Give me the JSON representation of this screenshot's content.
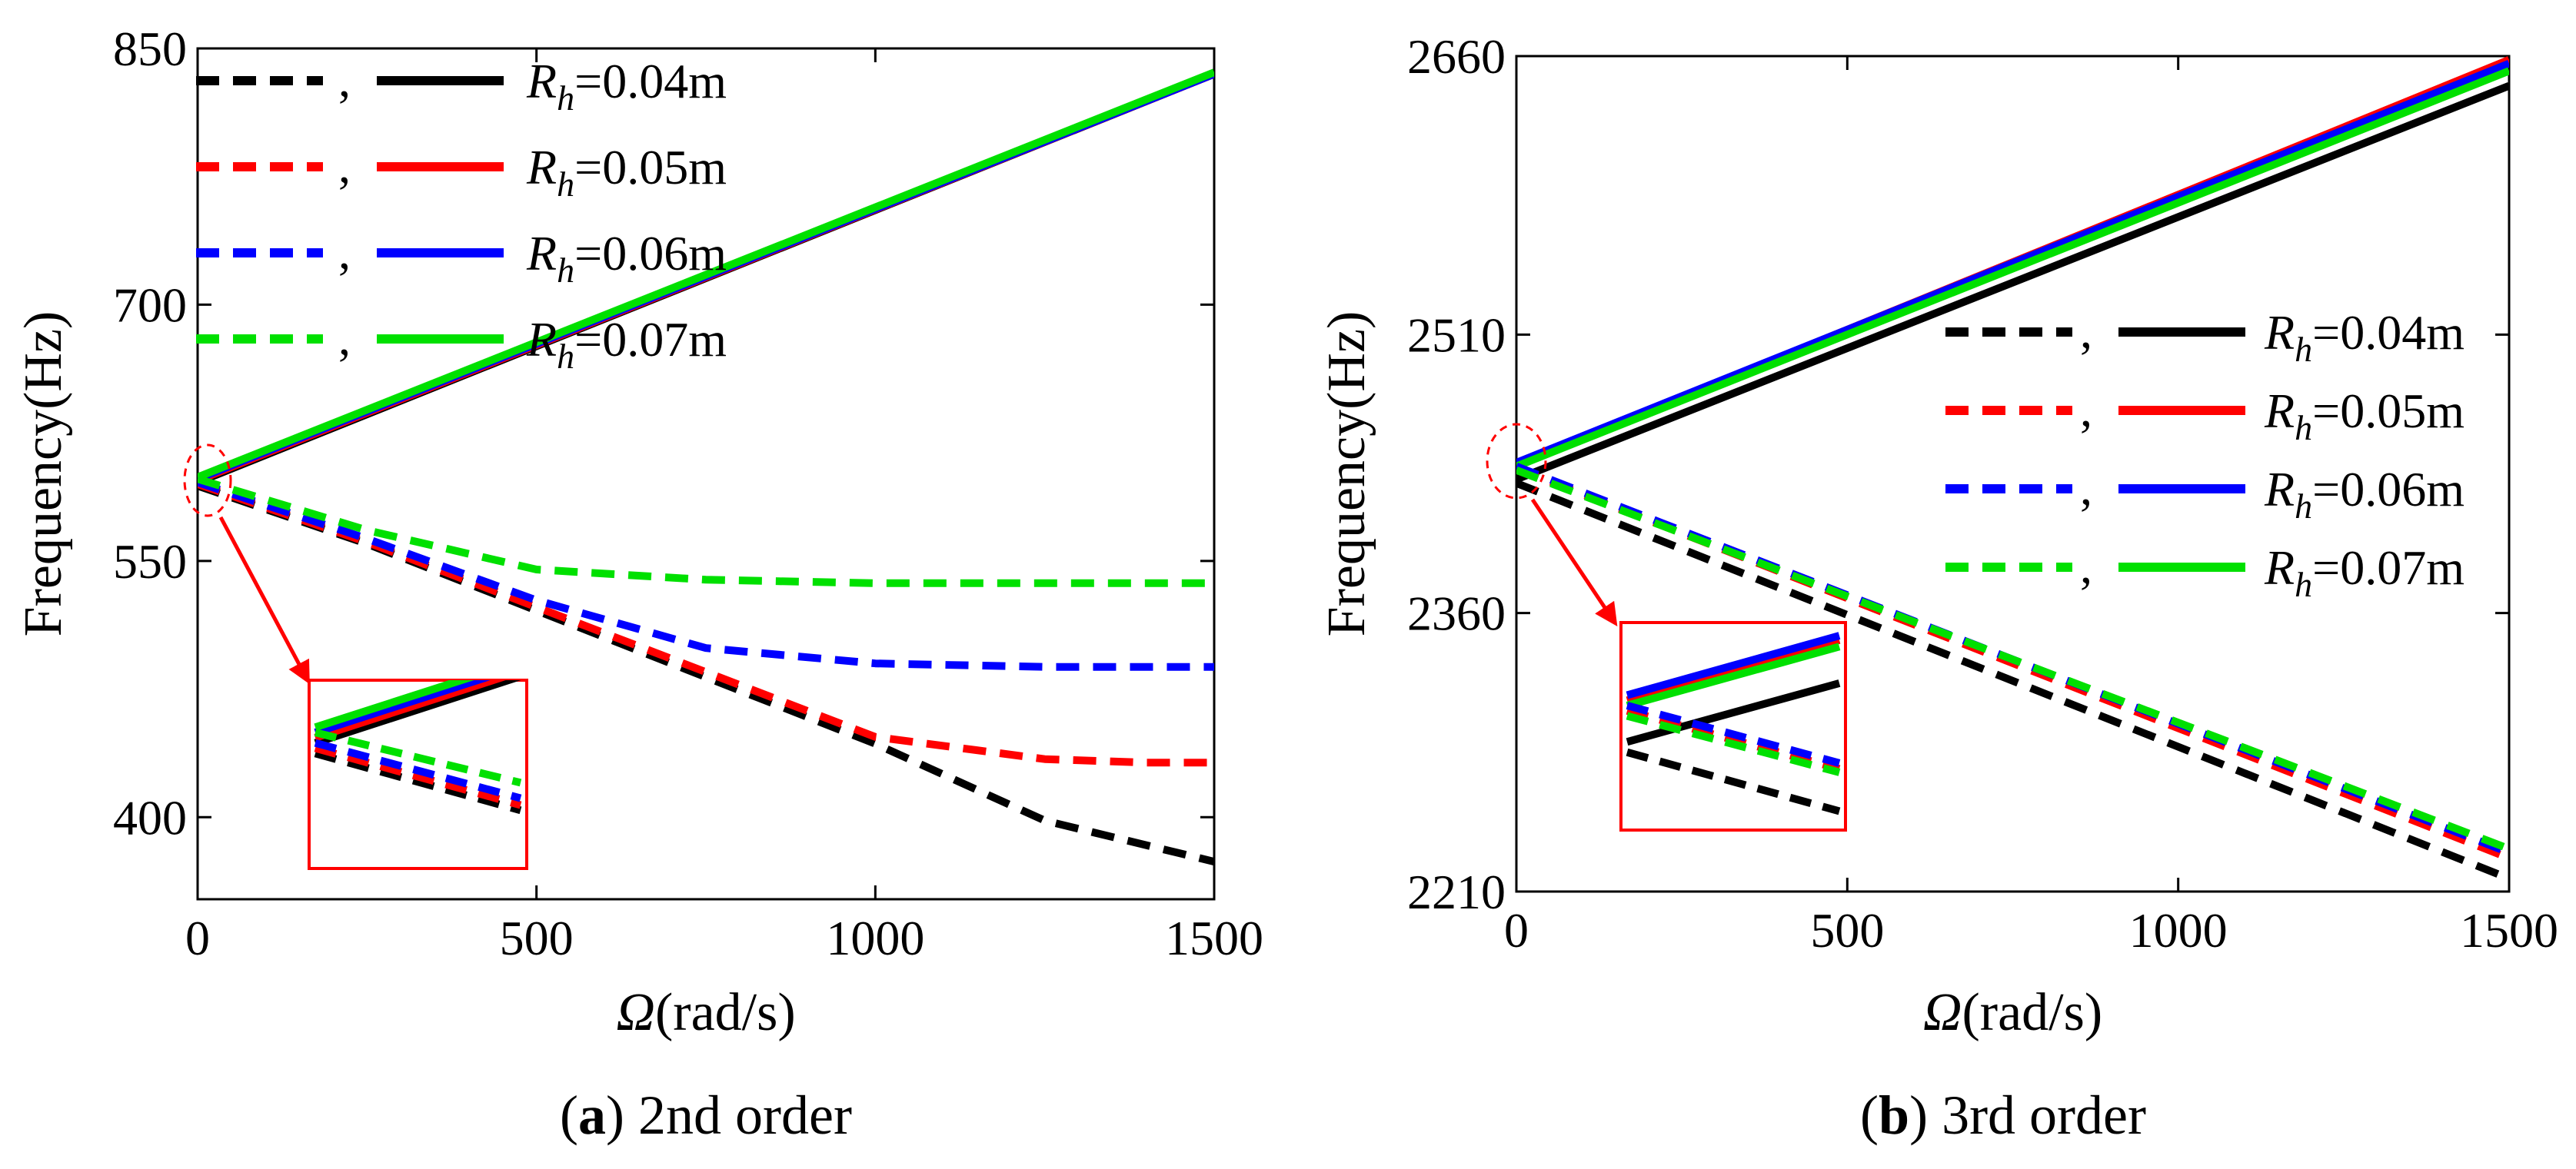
{
  "chart_data": [
    {
      "type": "line",
      "caption_letter": "a",
      "caption_text": " 2nd order",
      "xlabel_symbol": "Ω",
      "xlabel_unit": "(rad/s)",
      "ylabel": "Frequency(Hz)",
      "xlim": [
        0,
        1500
      ],
      "ylim": [
        352,
        850
      ],
      "xticks": [
        0,
        500,
        1000,
        1500
      ],
      "yticks": [
        400,
        550,
        700,
        850
      ],
      "legend_position": "top-left",
      "legend_labels": [
        {
          "main": "R",
          "sub": "h",
          "rest": "=0.04m"
        },
        {
          "main": "R",
          "sub": "h",
          "rest": "=0.05m"
        },
        {
          "main": "R",
          "sub": "h",
          "rest": "=0.06m"
        },
        {
          "main": "R",
          "sub": "h",
          "rest": "=0.07m"
        }
      ],
      "series": [
        {
          "name": "R_h=0.04m forward",
          "color": "#000000",
          "style": "solid",
          "x": [
            0,
            1500
          ],
          "y": [
            596,
            835
          ]
        },
        {
          "name": "R_h=0.05m forward",
          "color": "#ff0000",
          "style": "solid",
          "x": [
            0,
            1500
          ],
          "y": [
            597,
            835
          ]
        },
        {
          "name": "R_h=0.06m forward",
          "color": "#0000ff",
          "style": "solid",
          "x": [
            0,
            1500
          ],
          "y": [
            598,
            835
          ]
        },
        {
          "name": "R_h=0.07m forward",
          "color": "#00e000",
          "style": "solid",
          "x": [
            0,
            1500
          ],
          "y": [
            599,
            836
          ]
        },
        {
          "name": "R_h=0.04m backward",
          "color": "#000000",
          "style": "dashed",
          "x": [
            0,
            250,
            500,
            750,
            1000,
            1250,
            1500
          ],
          "y": [
            594,
            560,
            521,
            482,
            443,
            398,
            374
          ]
        },
        {
          "name": "R_h=0.05m backward",
          "color": "#ff0000",
          "style": "dashed",
          "x": [
            0,
            250,
            500,
            750,
            1000,
            1250,
            1400,
            1500
          ],
          "y": [
            595,
            561,
            523,
            485,
            447,
            434,
            432,
            432
          ]
        },
        {
          "name": "R_h=0.06m backward",
          "color": "#0000ff",
          "style": "dashed",
          "x": [
            0,
            250,
            500,
            750,
            1000,
            1250,
            1500
          ],
          "y": [
            596,
            563,
            527,
            499,
            490,
            488,
            488
          ]
        },
        {
          "name": "R_h=0.07m backward",
          "color": "#00e000",
          "style": "dashed",
          "x": [
            0,
            250,
            500,
            750,
            1000,
            1250,
            1500
          ],
          "y": [
            598,
            568,
            545,
            539,
            537,
            537,
            537
          ]
        }
      ]
    },
    {
      "type": "line",
      "caption_letter": "b",
      "caption_text": " 3rd order",
      "xlabel_symbol": "Ω",
      "xlabel_unit": "(rad/s)",
      "ylabel": "Frequency(Hz)",
      "xlim": [
        0,
        1500
      ],
      "ylim": [
        2210,
        2660
      ],
      "xticks": [
        0,
        500,
        1000,
        1500
      ],
      "yticks": [
        2210,
        2360,
        2510,
        2660
      ],
      "legend_position": "center-right",
      "legend_labels": [
        {
          "main": "R",
          "sub": "h",
          "rest": "=0.04m"
        },
        {
          "main": "R",
          "sub": "h",
          "rest": "=0.05m"
        },
        {
          "main": "R",
          "sub": "h",
          "rest": "=0.06m"
        },
        {
          "main": "R",
          "sub": "h",
          "rest": "=0.07m"
        }
      ],
      "series": [
        {
          "name": "R_h=0.04m forward",
          "color": "#000000",
          "style": "solid",
          "x": [
            0,
            1500
          ],
          "y": [
            2432,
            2644
          ]
        },
        {
          "name": "R_h=0.05m forward",
          "color": "#ff0000",
          "style": "solid",
          "x": [
            0,
            1500
          ],
          "y": [
            2440,
            2658
          ]
        },
        {
          "name": "R_h=0.06m forward",
          "color": "#0000ff",
          "style": "solid",
          "x": [
            0,
            1500
          ],
          "y": [
            2441,
            2656
          ]
        },
        {
          "name": "R_h=0.07m forward",
          "color": "#00e000",
          "style": "solid",
          "x": [
            0,
            1500
          ],
          "y": [
            2439,
            2652
          ]
        },
        {
          "name": "R_h=0.04m backward",
          "color": "#000000",
          "style": "dashed",
          "x": [
            0,
            1500
          ],
          "y": [
            2430,
            2217
          ]
        },
        {
          "name": "R_h=0.05m backward",
          "color": "#ff0000",
          "style": "dashed",
          "x": [
            0,
            1500
          ],
          "y": [
            2438,
            2228
          ]
        },
        {
          "name": "R_h=0.06m backward",
          "color": "#0000ff",
          "style": "dashed",
          "x": [
            0,
            1500
          ],
          "y": [
            2439,
            2231
          ]
        },
        {
          "name": "R_h=0.07m backward",
          "color": "#00e000",
          "style": "dashed",
          "x": [
            0,
            1500
          ],
          "y": [
            2437,
            2233
          ]
        }
      ]
    }
  ]
}
